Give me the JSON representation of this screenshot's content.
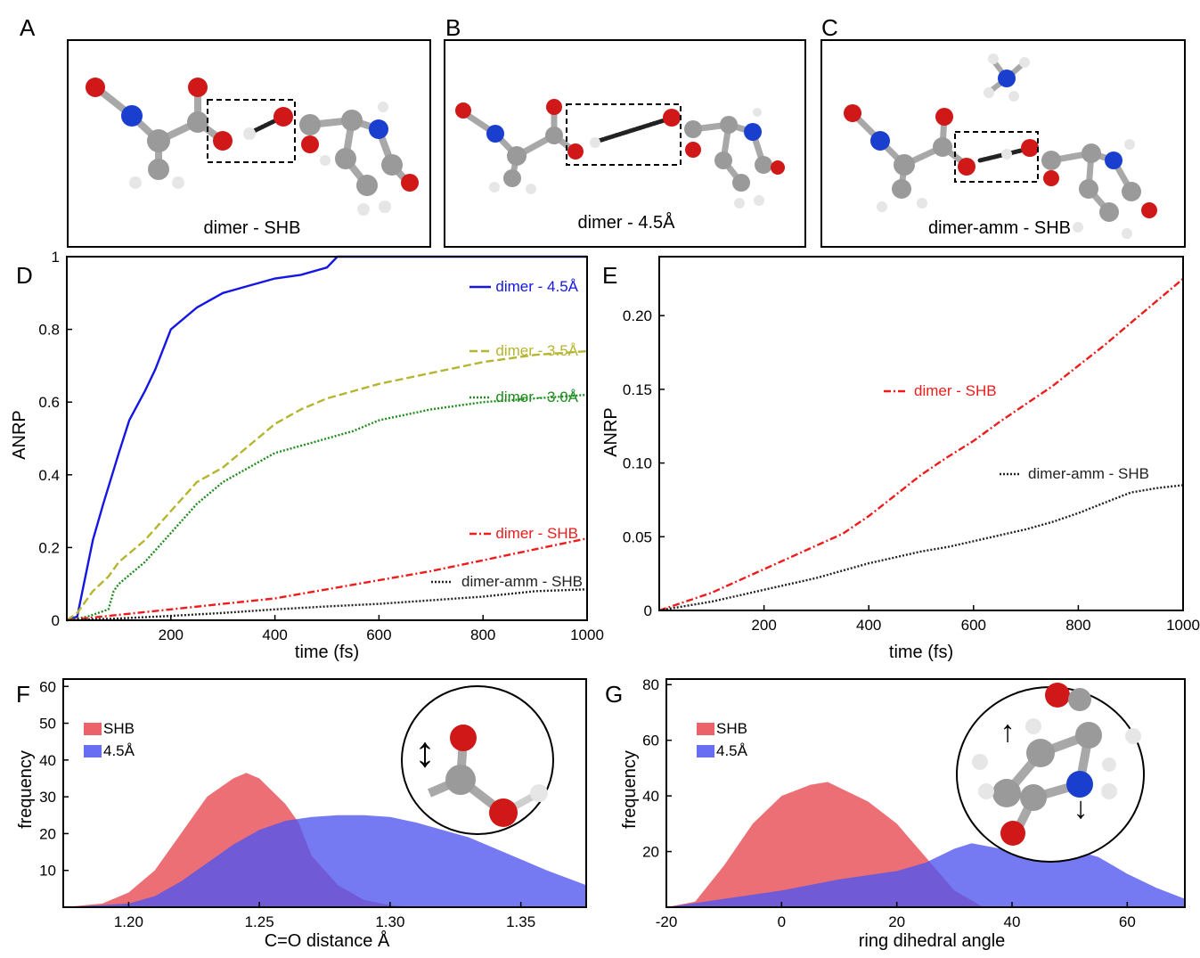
{
  "panels": {
    "A": {
      "letter": "A",
      "caption": "dimer - SHB"
    },
    "B": {
      "letter": "B",
      "caption": "dimer - 4.5Å"
    },
    "C": {
      "letter": "C",
      "caption": "dimer-amm - SHB"
    }
  },
  "colors": {
    "oxygen": "#d01818",
    "nitrogen": "#1a3fcf",
    "carbon": "#9a9a9a",
    "hydrogen": "#e6e6e6",
    "blue": "#1515e6",
    "olive": "#b5b530",
    "green": "#1d8c1d",
    "red": "#ee1c1c",
    "black": "#222222",
    "hist_red": "#e8464f",
    "hist_blue": "#4e55f0"
  },
  "chart_data": [
    {
      "panel": "D",
      "type": "line",
      "xlabel": "time (fs)",
      "ylabel": "ANRP",
      "xlim": [
        0,
        1000
      ],
      "ylim": [
        0,
        1.0
      ],
      "xticks": [
        "200",
        "400",
        "600",
        "800",
        "1000"
      ],
      "yticks": [
        "0",
        "0.2",
        "0.4",
        "0.6",
        "0.8",
        "1"
      ],
      "series": [
        {
          "name": "dimer - 4.5Å",
          "color": "#1515e6",
          "dash": "solid",
          "x": [
            0,
            20,
            30,
            50,
            70,
            100,
            120,
            150,
            170,
            200,
            250,
            300,
            350,
            400,
            450,
            500,
            520,
            1000
          ],
          "y": [
            0,
            0.01,
            0.08,
            0.22,
            0.32,
            0.46,
            0.55,
            0.63,
            0.69,
            0.8,
            0.86,
            0.9,
            0.92,
            0.94,
            0.95,
            0.97,
            1.0,
            1.0
          ]
        },
        {
          "name": "dimer - 3.5Å",
          "color": "#b5b530",
          "dash": "dashed",
          "x": [
            0,
            20,
            50,
            80,
            100,
            150,
            200,
            250,
            300,
            350,
            400,
            450,
            500,
            550,
            600,
            700,
            800,
            900,
            1000
          ],
          "y": [
            0,
            0.02,
            0.08,
            0.12,
            0.16,
            0.22,
            0.3,
            0.38,
            0.42,
            0.48,
            0.54,
            0.58,
            0.61,
            0.63,
            0.65,
            0.68,
            0.71,
            0.73,
            0.74
          ]
        },
        {
          "name": "dimer - 3.0Å",
          "color": "#1d8c1d",
          "dash": "dotted",
          "x": [
            0,
            40,
            80,
            90,
            100,
            150,
            200,
            250,
            300,
            350,
            400,
            450,
            500,
            550,
            600,
            700,
            800,
            900,
            1000
          ],
          "y": [
            0,
            0.01,
            0.03,
            0.08,
            0.1,
            0.16,
            0.24,
            0.32,
            0.38,
            0.42,
            0.46,
            0.48,
            0.5,
            0.52,
            0.55,
            0.58,
            0.6,
            0.61,
            0.62
          ]
        },
        {
          "name": "dimer - SHB",
          "color": "#ee1c1c",
          "dash": "dashdot",
          "x": [
            0,
            100,
            200,
            300,
            400,
            500,
            600,
            700,
            800,
            900,
            1000
          ],
          "y": [
            0,
            0.015,
            0.03,
            0.045,
            0.06,
            0.085,
            0.11,
            0.135,
            0.165,
            0.195,
            0.225
          ]
        },
        {
          "name": "dimer-amm - SHB",
          "color": "#222222",
          "dash": "dotted",
          "x": [
            0,
            100,
            200,
            300,
            400,
            500,
            600,
            700,
            800,
            900,
            1000
          ],
          "y": [
            0,
            0.005,
            0.012,
            0.02,
            0.03,
            0.038,
            0.045,
            0.055,
            0.065,
            0.08,
            0.085
          ]
        }
      ]
    },
    {
      "panel": "E",
      "type": "line",
      "xlabel": "time (fs)",
      "ylabel": "ANRP",
      "xlim": [
        0,
        1000
      ],
      "ylim": [
        0,
        0.24
      ],
      "xticks": [
        "200",
        "400",
        "600",
        "800",
        "1000"
      ],
      "yticks": [
        "0",
        "0.05",
        "0.10",
        "0.15",
        "0.20"
      ],
      "series": [
        {
          "name": "dimer - SHB",
          "color": "#ee1c1c",
          "dash": "dashdot",
          "x": [
            0,
            50,
            100,
            150,
            200,
            250,
            300,
            350,
            400,
            450,
            500,
            550,
            600,
            650,
            700,
            750,
            800,
            850,
            900,
            950,
            1000
          ],
          "y": [
            0,
            0.006,
            0.012,
            0.02,
            0.028,
            0.036,
            0.044,
            0.052,
            0.064,
            0.078,
            0.092,
            0.104,
            0.115,
            0.128,
            0.14,
            0.152,
            0.166,
            0.18,
            0.195,
            0.21,
            0.225
          ]
        },
        {
          "name": "dimer-amm - SHB",
          "color": "#222222",
          "dash": "dotted",
          "x": [
            0,
            50,
            100,
            150,
            200,
            250,
            300,
            350,
            400,
            450,
            500,
            550,
            600,
            650,
            700,
            750,
            800,
            850,
            900,
            950,
            1000
          ],
          "y": [
            0,
            0.003,
            0.006,
            0.01,
            0.014,
            0.018,
            0.022,
            0.027,
            0.032,
            0.036,
            0.04,
            0.043,
            0.047,
            0.051,
            0.055,
            0.06,
            0.066,
            0.073,
            0.08,
            0.083,
            0.085
          ]
        }
      ]
    },
    {
      "panel": "F",
      "type": "area",
      "xlabel": "C=O distance Å",
      "ylabel": "frequency",
      "xlim": [
        1.175,
        1.375
      ],
      "ylim": [
        0,
        62
      ],
      "xticks": [
        "1.20",
        "1.25",
        "1.30",
        "1.35"
      ],
      "yticks": [
        "10",
        "20",
        "30",
        "40",
        "50",
        "60"
      ],
      "series": [
        {
          "name": "SHB",
          "color": "#e8464f",
          "x": [
            1.175,
            1.19,
            1.2,
            1.21,
            1.22,
            1.23,
            1.24,
            1.245,
            1.25,
            1.26,
            1.265,
            1.27,
            1.28,
            1.29,
            1.3,
            1.31
          ],
          "y": [
            0,
            1,
            4,
            10,
            20,
            30,
            35,
            36.5,
            35,
            28,
            23,
            14,
            6,
            2,
            0.5,
            0
          ]
        },
        {
          "name": "4.5Å",
          "color": "#4e55f0",
          "x": [
            1.175,
            1.2,
            1.21,
            1.22,
            1.23,
            1.24,
            1.25,
            1.26,
            1.27,
            1.28,
            1.29,
            1.3,
            1.31,
            1.32,
            1.33,
            1.34,
            1.35,
            1.36,
            1.375
          ],
          "y": [
            0,
            1,
            3,
            7,
            12,
            17,
            21,
            23.5,
            24.5,
            25,
            25,
            24.5,
            23,
            21,
            19,
            16,
            13,
            10,
            6
          ]
        }
      ]
    },
    {
      "panel": "G",
      "type": "area",
      "xlabel": "ring dihedral angle",
      "ylabel": "frequency",
      "xlim": [
        -20,
        70
      ],
      "ylim": [
        0,
        82
      ],
      "xticks": [
        "-20",
        "0",
        "20",
        "40",
        "60"
      ],
      "yticks": [
        "20",
        "40",
        "60",
        "80"
      ],
      "series": [
        {
          "name": "SHB",
          "color": "#e8464f",
          "x": [
            -20,
            -15,
            -10,
            -5,
            0,
            5,
            8,
            10,
            15,
            20,
            25,
            30,
            35
          ],
          "y": [
            0,
            2,
            15,
            30,
            40,
            44,
            45,
            43,
            38,
            30,
            18,
            6,
            0
          ]
        },
        {
          "name": "4.5Å",
          "color": "#4e55f0",
          "x": [
            -20,
            -10,
            0,
            10,
            20,
            25,
            30,
            33,
            38,
            42,
            45,
            50,
            55,
            60,
            65,
            70
          ],
          "y": [
            0,
            3,
            6,
            10,
            13,
            16,
            21,
            23,
            21,
            18,
            19,
            21,
            18,
            12,
            7,
            3
          ]
        }
      ]
    }
  ],
  "insets": {
    "F": {
      "arrow_glyph": "↕"
    },
    "G": {
      "up_glyph": "↑",
      "down_glyph": "↓"
    }
  }
}
